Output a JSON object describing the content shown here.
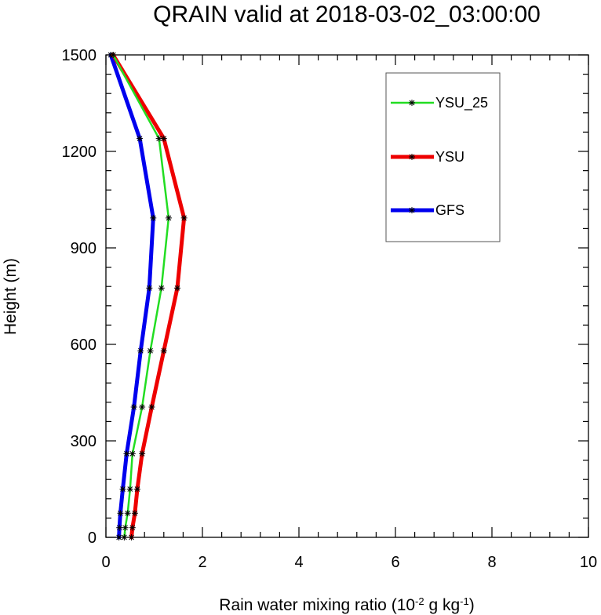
{
  "chart_data": {
    "type": "line",
    "title": "QRAIN valid at 2018-03-02_03:00:00",
    "xlabel": {
      "prefix": "Rain water mixing ratio (10",
      "exp1": "-2",
      "middle": " g kg",
      "exp2": "-1",
      "suffix": ")"
    },
    "ylabel": "Height (m)",
    "xlim": [
      0,
      10
    ],
    "ylim": [
      0,
      1500
    ],
    "x_ticks": [
      0,
      2,
      4,
      6,
      8,
      10
    ],
    "y_ticks": [
      0,
      300,
      600,
      900,
      1200,
      1500
    ],
    "x_tick_labels": [
      "0",
      "2",
      "4",
      "6",
      "8",
      "10"
    ],
    "y_tick_labels": [
      "0",
      "300",
      "600",
      "900",
      "1200",
      "1500"
    ],
    "grid": false,
    "legend_position": "top-right",
    "series": [
      {
        "name": "YSU_25",
        "color": "#22dd22",
        "width": "thin",
        "points": [
          [
            0.38,
            0
          ],
          [
            0.4,
            30
          ],
          [
            0.45,
            75
          ],
          [
            0.5,
            150
          ],
          [
            0.55,
            260
          ],
          [
            0.75,
            405
          ],
          [
            0.92,
            580
          ],
          [
            1.15,
            775
          ],
          [
            1.3,
            993
          ],
          [
            1.1,
            1240
          ],
          [
            0.15,
            1500
          ]
        ]
      },
      {
        "name": "YSU",
        "color": "#ee0000",
        "width": "thick",
        "points": [
          [
            0.53,
            0
          ],
          [
            0.55,
            30
          ],
          [
            0.6,
            75
          ],
          [
            0.65,
            150
          ],
          [
            0.75,
            260
          ],
          [
            0.95,
            405
          ],
          [
            1.2,
            580
          ],
          [
            1.48,
            775
          ],
          [
            1.62,
            993
          ],
          [
            1.2,
            1240
          ],
          [
            0.15,
            1500
          ]
        ]
      },
      {
        "name": "GFS",
        "color": "#0000ee",
        "width": "thick",
        "points": [
          [
            0.27,
            0
          ],
          [
            0.28,
            30
          ],
          [
            0.3,
            75
          ],
          [
            0.35,
            150
          ],
          [
            0.43,
            260
          ],
          [
            0.58,
            405
          ],
          [
            0.72,
            580
          ],
          [
            0.9,
            775
          ],
          [
            0.98,
            993
          ],
          [
            0.7,
            1240
          ],
          [
            0.1,
            1500
          ]
        ]
      }
    ]
  }
}
